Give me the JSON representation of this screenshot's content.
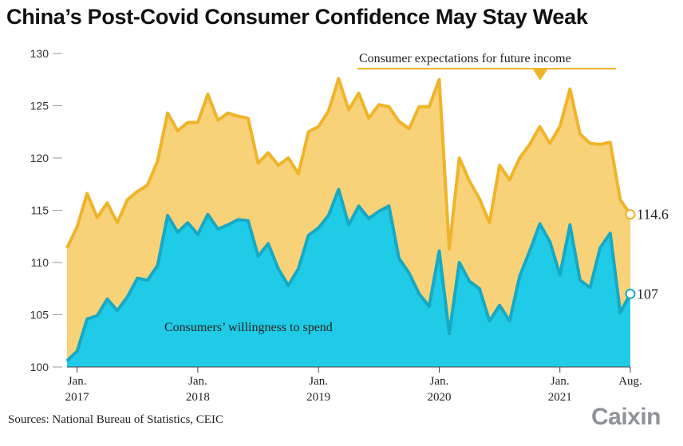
{
  "title": "China’s Post-Covid Consumer Confidence May Stay Weak",
  "source": "Sources: National Bureau of Statistics, CEIC",
  "brand": "Caixin",
  "colors": {
    "income_fill": "#f8d278",
    "income_line": "#f0b429",
    "spend_fill": "#1fcbe7",
    "spend_line": "#17a9c4",
    "axis_text": "#333333"
  },
  "chart_data": {
    "type": "area",
    "title": "China’s Post-Covid Consumer Confidence May Stay Weak",
    "ylim": [
      100,
      130
    ],
    "yticks": [
      100,
      105,
      110,
      115,
      120,
      125,
      130
    ],
    "grid": false,
    "x_tick_labels": [
      {
        "month": "Jan.",
        "year": "2017",
        "x": "2017-01"
      },
      {
        "month": "Jan.",
        "year": "2018",
        "x": "2018-01"
      },
      {
        "month": "Jan.",
        "year": "2019",
        "x": "2019-01"
      },
      {
        "month": "Jan.",
        "year": "2020",
        "x": "2020-01"
      },
      {
        "month": "Jan.",
        "year": "2021",
        "x": "2021-01"
      },
      {
        "month": "Aug.",
        "year": "",
        "x": "2021-08"
      }
    ],
    "x": [
      "2016-12",
      "2017-01",
      "2017-02",
      "2017-03",
      "2017-04",
      "2017-05",
      "2017-06",
      "2017-07",
      "2017-08",
      "2017-09",
      "2017-10",
      "2017-11",
      "2017-12",
      "2018-01",
      "2018-02",
      "2018-03",
      "2018-04",
      "2018-05",
      "2018-06",
      "2018-07",
      "2018-08",
      "2018-09",
      "2018-10",
      "2018-11",
      "2018-12",
      "2019-01",
      "2019-02",
      "2019-03",
      "2019-04",
      "2019-05",
      "2019-06",
      "2019-07",
      "2019-08",
      "2019-09",
      "2019-10",
      "2019-11",
      "2019-12",
      "2020-01",
      "2020-02",
      "2020-03",
      "2020-04",
      "2020-05",
      "2020-06",
      "2020-07",
      "2020-08",
      "2020-09",
      "2020-10",
      "2020-11",
      "2020-12",
      "2021-01",
      "2021-02",
      "2021-03",
      "2021-04",
      "2021-05",
      "2021-06",
      "2021-07",
      "2021-08"
    ],
    "series": [
      {
        "name": "Consumer expectations for future income",
        "values": [
          111.4,
          113.4,
          116.6,
          114.3,
          115.7,
          113.8,
          116.0,
          116.8,
          117.4,
          119.7,
          124.3,
          122.6,
          123.4,
          123.4,
          126.1,
          123.6,
          124.3,
          124.0,
          123.8,
          119.5,
          120.5,
          119.3,
          120.0,
          118.5,
          122.5,
          123.0,
          124.5,
          127.6,
          124.6,
          126.2,
          123.8,
          125.1,
          124.9,
          123.5,
          122.8,
          124.9,
          124.9,
          127.5,
          111.3,
          120.0,
          117.8,
          116.1,
          113.8,
          119.3,
          117.9,
          120.0,
          121.3,
          123.0,
          121.4,
          123.0,
          126.6,
          122.3,
          121.4,
          121.3,
          121.5,
          116.0,
          114.6
        ]
      },
      {
        "name": "Consumers’ willingness to spend",
        "values": [
          100.6,
          101.5,
          104.6,
          104.9,
          106.5,
          105.4,
          106.7,
          108.5,
          108.3,
          109.7,
          114.5,
          112.9,
          113.8,
          112.7,
          114.6,
          113.2,
          113.6,
          114.1,
          114.0,
          110.6,
          111.8,
          109.4,
          107.8,
          109.4,
          112.6,
          113.3,
          114.5,
          117.0,
          113.6,
          115.4,
          114.2,
          114.9,
          115.4,
          110.4,
          109.0,
          107.0,
          105.8,
          111.1,
          103.2,
          110.0,
          108.2,
          107.5,
          104.4,
          105.9,
          104.4,
          108.7,
          111.1,
          113.7,
          112.0,
          108.8,
          113.6,
          108.3,
          107.6,
          111.4,
          112.8,
          105.2,
          107.0
        ]
      }
    ],
    "annotations": {
      "income_label": "Consumer expectations for future income",
      "spend_label": "Consumers’ willingness to spend",
      "income_end": "114.6",
      "spend_end": "107"
    }
  }
}
